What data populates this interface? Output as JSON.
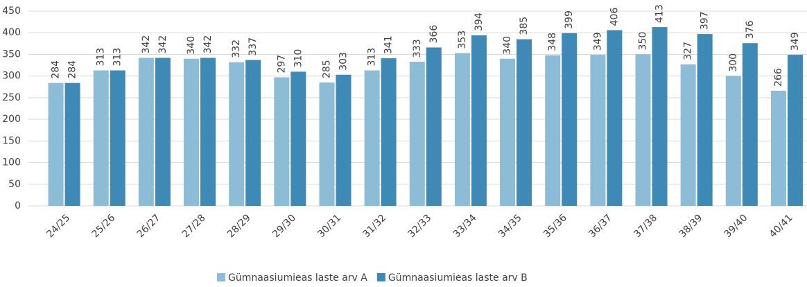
{
  "chart_data": {
    "type": "bar",
    "categories": [
      "24/25",
      "25/26",
      "26/27",
      "27/28",
      "28/29",
      "29/30",
      "30/31",
      "31/32",
      "32/33",
      "33/34",
      "34/35",
      "35/36",
      "36/37",
      "37/38",
      "38/39",
      "39/40",
      "40/41"
    ],
    "series": [
      {
        "name": "Gümnaasiumieas laste arv A",
        "color": "#8dbcd6",
        "values": [
          284,
          313,
          342,
          340,
          332,
          297,
          285,
          313,
          333,
          353,
          340,
          348,
          349,
          350,
          327,
          300,
          266
        ]
      },
      {
        "name": "Gümnaasiumieas laste arv B",
        "color": "#3e89b5",
        "values": [
          284,
          313,
          342,
          342,
          337,
          310,
          303,
          341,
          366,
          394,
          385,
          399,
          406,
          413,
          397,
          376,
          349
        ]
      }
    ],
    "ylim": [
      0,
      450
    ],
    "yticks": [
      0,
      50,
      100,
      150,
      200,
      250,
      300,
      350,
      400,
      450
    ],
    "grid": true,
    "legend": "bottom"
  }
}
